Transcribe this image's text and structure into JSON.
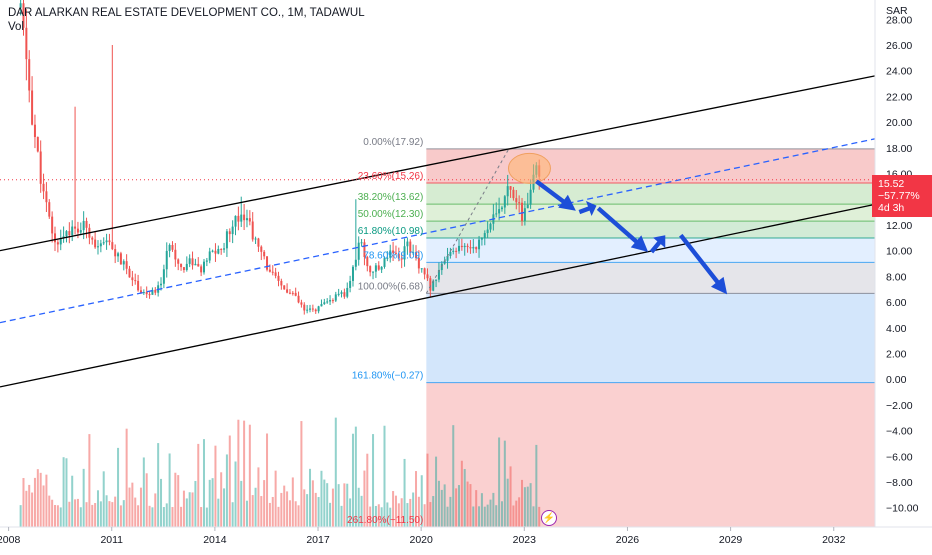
{
  "header": {
    "title": "DAR ALARKAN REAL ESTATE DEVELOPMENT CO., 1M, TADAWUL",
    "volume_label": "Vol"
  },
  "axis": {
    "currency": "SAR",
    "y_ticks": [
      "28.00",
      "26.00",
      "24.00",
      "22.00",
      "20.00",
      "18.00",
      "16.00",
      "14.00",
      "12.00",
      "10.00",
      "8.00",
      "6.00",
      "4.00",
      "2.00",
      "0.00",
      "−2.00",
      "−4.00",
      "−6.00",
      "−8.00",
      "−10.00"
    ],
    "x_ticks": [
      "2008",
      "2011",
      "2014",
      "2017",
      "2020",
      "2023",
      "2026",
      "2029",
      "2032"
    ]
  },
  "price_badge": {
    "price": "15.52",
    "change": "−57.77%",
    "countdown": "4d 3h",
    "color": "#f23645"
  },
  "event_icon": "lightning-bolt-icon",
  "chart_data": {
    "type": "candlestick",
    "x_range": [
      2007.75,
      2033.2
    ],
    "ylim": [
      -11.5,
      29.5
    ],
    "grid": false,
    "colors": {
      "up": "#26a69a",
      "down": "#ef5350",
      "trend": "#000000",
      "median": "#2962ff",
      "arrows": "#1d4ed8"
    },
    "price_path": [
      [
        2008.35,
        28.9
      ],
      [
        2008.7,
        20.0
      ],
      [
        2009.0,
        14.5
      ],
      [
        2009.35,
        10.5
      ],
      [
        2009.7,
        11.6
      ],
      [
        2010.0,
        11.5
      ],
      [
        2010.25,
        12.0
      ],
      [
        2010.6,
        10.1
      ],
      [
        2010.9,
        10.6
      ],
      [
        2011.2,
        9.4
      ],
      [
        2011.5,
        8.3
      ],
      [
        2011.8,
        7.0
      ],
      [
        2012.1,
        6.5
      ],
      [
        2012.4,
        7.2
      ],
      [
        2012.7,
        10.8
      ],
      [
        2013.0,
        8.6
      ],
      [
        2013.3,
        9.3
      ],
      [
        2013.6,
        8.4
      ],
      [
        2013.9,
        9.9
      ],
      [
        2014.2,
        10.0
      ],
      [
        2014.5,
        12.2
      ],
      [
        2014.8,
        13.1
      ],
      [
        2015.0,
        12.1
      ],
      [
        2015.2,
        10.5
      ],
      [
        2015.5,
        8.9
      ],
      [
        2015.8,
        7.6
      ],
      [
        2016.0,
        7.0
      ],
      [
        2016.3,
        6.5
      ],
      [
        2016.6,
        5.3
      ],
      [
        2016.9,
        5.4
      ],
      [
        2017.2,
        5.8
      ],
      [
        2017.5,
        6.4
      ],
      [
        2017.8,
        6.6
      ],
      [
        2018.0,
        8.3
      ],
      [
        2018.2,
        10.9
      ],
      [
        2018.5,
        8.4
      ],
      [
        2018.8,
        8.6
      ],
      [
        2019.1,
        10.2
      ],
      [
        2019.4,
        9.4
      ],
      [
        2019.6,
        10.7
      ],
      [
        2019.85,
        9.1
      ],
      [
        2020.1,
        8.0
      ],
      [
        2020.3,
        7.0
      ],
      [
        2020.5,
        8.6
      ],
      [
        2020.8,
        9.5
      ],
      [
        2021.1,
        10.1
      ],
      [
        2021.4,
        10.3
      ],
      [
        2021.7,
        10.6
      ],
      [
        2022.0,
        12.2
      ],
      [
        2022.3,
        12.9
      ],
      [
        2022.55,
        15.7
      ],
      [
        2022.75,
        13.9
      ],
      [
        2022.95,
        12.5
      ],
      [
        2023.15,
        14.3
      ],
      [
        2023.35,
        16.1
      ],
      [
        2023.5,
        15.52
      ]
    ],
    "volume_scale": {
      "base_y": -11.5,
      "units_per_full": 10
    },
    "trend_lines": [
      {
        "name": "upper-channel",
        "from": [
          2007.75,
          10.0
        ],
        "to": [
          2033.2,
          23.6
        ],
        "color": "#000000"
      },
      {
        "name": "median-line",
        "from": [
          2007.75,
          4.4
        ],
        "to": [
          2033.2,
          18.7
        ],
        "color": "#2962ff",
        "dashed": true
      },
      {
        "name": "lower-channel",
        "from": [
          2007.75,
          -0.6
        ],
        "to": [
          2033.2,
          13.6
        ],
        "color": "#000000"
      }
    ],
    "fib": {
      "x_start": 2020.15,
      "x_end": 2033.2,
      "levels": [
        {
          "label": "0.00%(17.92)",
          "value": 17.92,
          "color": "#787b86"
        },
        {
          "label": "23.60%(15.26)",
          "value": 15.26,
          "color": "#f23645"
        },
        {
          "label": "38.20%(13.62)",
          "value": 13.62,
          "color": "#4caf50"
        },
        {
          "label": "50.00%(12.30)",
          "value": 12.3,
          "color": "#4caf50"
        },
        {
          "label": "61.80%(10.98)",
          "value": 10.98,
          "color": "#089981"
        },
        {
          "label": "78.60%(9.09)",
          "value": 9.09,
          "color": "#2196f3"
        },
        {
          "label": "100.00%(6.68)",
          "value": 6.68,
          "color": "#787b86"
        },
        {
          "label": "161.80%(−0.27)",
          "value": -0.27,
          "color": "#2196f3"
        },
        {
          "label": "261.80%(−11.50)",
          "value": -11.5,
          "color": "#f23645"
        }
      ],
      "zones": [
        {
          "from": 17.92,
          "to": 15.26,
          "color": "#f8caca"
        },
        {
          "from": 15.26,
          "to": 13.62,
          "color": "#d6ecd2"
        },
        {
          "from": 13.62,
          "to": 12.3,
          "color": "#dff0d8"
        },
        {
          "from": 12.3,
          "to": 10.98,
          "color": "#d2ebd6"
        },
        {
          "from": 10.98,
          "to": 9.09,
          "color": "#e3efff"
        },
        {
          "from": 9.09,
          "to": 6.68,
          "color": "#e5e5ea"
        },
        {
          "from": 6.68,
          "to": -0.27,
          "color": "#d3e6fb"
        },
        {
          "from": -0.27,
          "to": -11.5,
          "color": "#fad0d0"
        }
      ]
    },
    "highlight_circle": {
      "x": 2023.15,
      "y": 16.4,
      "color": "#ffb46e"
    },
    "projection_arrows": [
      {
        "from": [
          2023.35,
          15.4
        ],
        "to": [
          2024.5,
          13.1
        ]
      },
      {
        "from": [
          2024.6,
          13.0
        ],
        "to": [
          2025.1,
          13.5
        ]
      },
      {
        "from": [
          2025.15,
          13.3
        ],
        "to": [
          2026.6,
          9.9
        ]
      },
      {
        "from": [
          2026.7,
          9.9
        ],
        "to": [
          2027.1,
          11.2
        ]
      },
      {
        "from": [
          2027.55,
          11.2
        ],
        "to": [
          2028.9,
          6.6
        ]
      }
    ]
  }
}
